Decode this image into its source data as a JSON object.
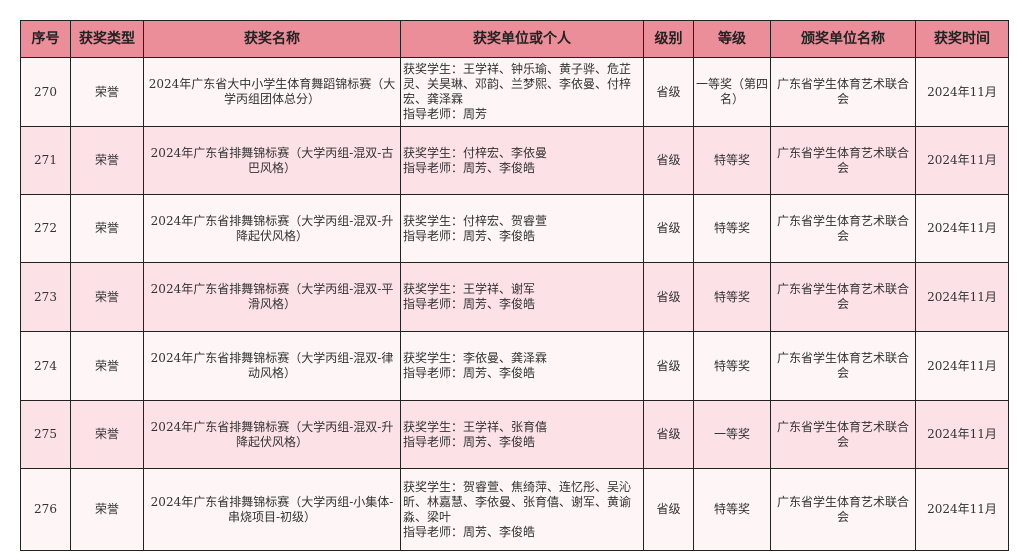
{
  "headers": [
    "序号",
    "获奖类型",
    "获奖名称",
    "获奖单位或个人",
    "级别",
    "等级",
    "颁奖单位名称",
    "获奖时间"
  ],
  "colors": {
    "header": "#ec8e9a",
    "row_odd": "#fdf5f6",
    "row_even": "#fce2e7"
  },
  "rows": [
    {
      "no": "270",
      "type": "荣誉",
      "name": "2024年广东省大中小学生体育舞蹈锦标赛（大学丙组团体总分）",
      "winners": "获奖学生：王学祥、钟乐瑜、黄子骅、危芷灵、关昊琳、邓韵、兰梦熙、李依曼、付梓宏、龚泽霖\n指导老师：周芳",
      "level": "省级",
      "grade": "一等奖（第四名）",
      "issuer": "广东省学生体育艺术联合会",
      "time": "2024年11月"
    },
    {
      "no": "271",
      "type": "荣誉",
      "name": "2024年广东省排舞锦标赛（大学丙组-混双-古巴风格）",
      "winners": "获奖学生：付梓宏、李依曼\n指导老师：周芳、李俊皓",
      "level": "省级",
      "grade": "特等奖",
      "issuer": "广东省学生体育艺术联合会",
      "time": "2024年11月"
    },
    {
      "no": "272",
      "type": "荣誉",
      "name": "2024年广东省排舞锦标赛（大学丙组-混双-升降起伏风格）",
      "winners": "获奖学生：付梓宏、贺睿萱\n指导老师：周芳、李俊皓",
      "level": "省级",
      "grade": "特等奖",
      "issuer": "广东省学生体育艺术联合会",
      "time": "2024年11月"
    },
    {
      "no": "273",
      "type": "荣誉",
      "name": "2024年广东省排舞锦标赛（大学丙组-混双-平滑风格）",
      "winners": "获奖学生：王学祥、谢军\n指导老师：周芳、李俊皓",
      "level": "省级",
      "grade": "特等奖",
      "issuer": "广东省学生体育艺术联合会",
      "time": "2024年11月"
    },
    {
      "no": "274",
      "type": "荣誉",
      "name": "2024年广东省排舞锦标赛（大学丙组-混双-律动风格）",
      "winners": "获奖学生：李依曼、龚泽霖\n指导老师：周芳、李俊皓",
      "level": "省级",
      "grade": "特等奖",
      "issuer": "广东省学生体育艺术联合会",
      "time": "2024年11月"
    },
    {
      "no": "275",
      "type": "荣誉",
      "name": "2024年广东省排舞锦标赛（大学丙组-混双-升降起伏风格）",
      "winners": "获奖学生：王学祥、张育僖\n指导老师：周芳、李俊皓",
      "level": "省级",
      "grade": "一等奖",
      "issuer": "广东省学生体育艺术联合会",
      "time": "2024年11月"
    },
    {
      "no": "276",
      "type": "荣誉",
      "name": "2024年广东省排舞锦标赛（大学丙组-小集体-串烧项目-初级）",
      "winners": "获奖学生：贺睿萱、焦绮萍、连忆彤、吴沁昕、林嘉慧、李依曼、张育僖、谢军、黄谕淼、梁叶\n指导老师：周芳、李俊皓",
      "level": "省级",
      "grade": "特等奖",
      "issuer": "广东省学生体育艺术联合会",
      "time": "2024年11月"
    }
  ]
}
